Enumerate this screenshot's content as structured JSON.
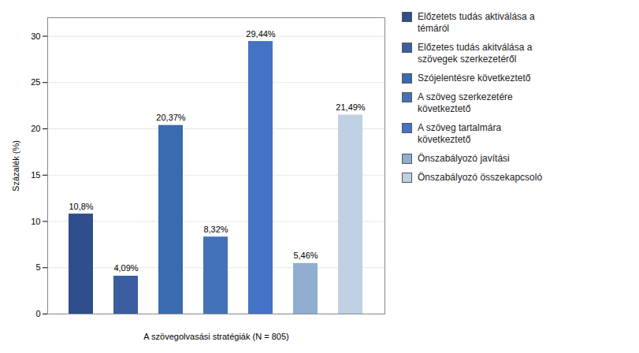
{
  "chart_data": {
    "type": "bar",
    "categories": [
      "Előzetets tudás aktiválása a\ntémáról",
      "Előzetes tudás akitválása a\nszövegek szerkezetéről",
      "Szójelentésre következtető",
      "A szöveg szerkezetére\nkövetkeztető",
      "A szöveg tartalmára\nkövetkeztető",
      "Önszabályozó javítási",
      "Önszabályozó összekapcsoló"
    ],
    "values": [
      10.8,
      4.09,
      20.37,
      8.32,
      29.44,
      5.46,
      21.49
    ],
    "value_labels": [
      "10,8%",
      "4,09%",
      "20,37%",
      "8,32%",
      "29,44%",
      "5,46%",
      "21,49%"
    ],
    "data_labels": true,
    "colors": [
      "#2E4E8C",
      "#3A5EA0",
      "#3A6BAF",
      "#4472B8",
      "#4472C4",
      "#8FAED0",
      "#C0D0E4"
    ],
    "ylabel": "Százalék (%)",
    "xlabel": "A szövegolvasási stratégiák (N = 805)",
    "ylim": [
      0,
      32
    ],
    "yticks": [
      0,
      5,
      10,
      15,
      20,
      25,
      30
    ],
    "grid": true,
    "legend": "right",
    "tick_labels": "y"
  }
}
